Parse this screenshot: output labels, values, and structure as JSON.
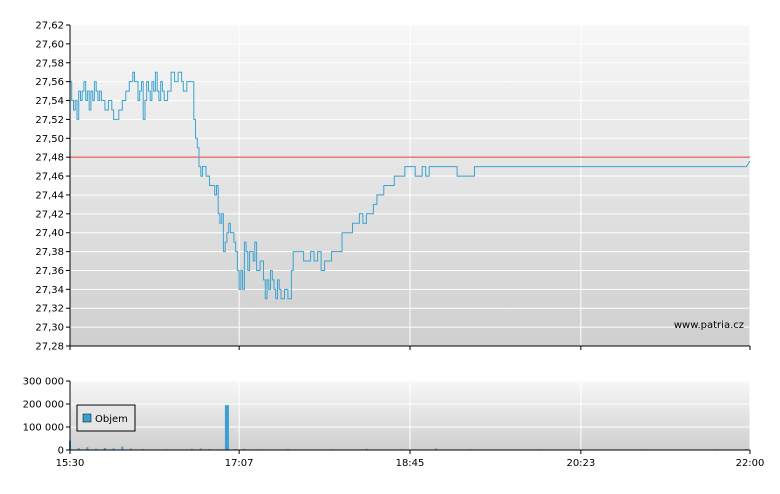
{
  "watermark": "www.patria.cz",
  "legend": {
    "label": "Objem"
  },
  "colors": {
    "price_line": "#3ba3d0",
    "reference_line": "#e53935",
    "volume_bar": "#3b9fd1",
    "grid": "#ffffff",
    "plot_bg_top": "#f7f7f7",
    "plot_bg_bottom": "#cfcfcf"
  },
  "chart_data": [
    {
      "type": "line",
      "name": "price",
      "x_ticks": [
        "15:30",
        "17:07",
        "18:45",
        "20:23",
        "22:00"
      ],
      "x_tick_minutes": [
        930,
        1027,
        1125,
        1223,
        1320
      ],
      "xlim_minutes": [
        930,
        1320
      ],
      "ylim": [
        27.28,
        27.62
      ],
      "y_ticks": [
        "27,28",
        "27,30",
        "27,32",
        "27,34",
        "27,36",
        "27,38",
        "27,40",
        "27,42",
        "27,44",
        "27,46",
        "27,48",
        "27,50",
        "27,52",
        "27,54",
        "27,56",
        "27,58",
        "27,60",
        "27,62"
      ],
      "reference_value": 27.48,
      "grid": true,
      "points": [
        [
          930,
          27.56
        ],
        [
          931,
          27.54
        ],
        [
          932,
          27.53
        ],
        [
          933,
          27.54
        ],
        [
          934,
          27.52
        ],
        [
          935,
          27.55
        ],
        [
          936,
          27.54
        ],
        [
          937,
          27.55
        ],
        [
          938,
          27.56
        ],
        [
          939,
          27.54
        ],
        [
          940,
          27.55
        ],
        [
          941,
          27.53
        ],
        [
          942,
          27.55
        ],
        [
          943,
          27.54
        ],
        [
          944,
          27.56
        ],
        [
          945,
          27.55
        ],
        [
          946,
          27.54
        ],
        [
          947,
          27.55
        ],
        [
          948,
          27.54
        ],
        [
          950,
          27.53
        ],
        [
          952,
          27.54
        ],
        [
          954,
          27.53
        ],
        [
          955,
          27.52
        ],
        [
          956,
          27.52
        ],
        [
          958,
          27.53
        ],
        [
          960,
          27.54
        ],
        [
          962,
          27.55
        ],
        [
          964,
          27.56
        ],
        [
          966,
          27.57
        ],
        [
          967,
          27.56
        ],
        [
          968,
          27.56
        ],
        [
          969,
          27.54
        ],
        [
          970,
          27.55
        ],
        [
          971,
          27.56
        ],
        [
          972,
          27.52
        ],
        [
          973,
          27.54
        ],
        [
          974,
          27.56
        ],
        [
          975,
          27.55
        ],
        [
          976,
          27.54
        ],
        [
          977,
          27.56
        ],
        [
          978,
          27.55
        ],
        [
          979,
          27.57
        ],
        [
          980,
          27.55
        ],
        [
          981,
          27.54
        ],
        [
          982,
          27.56
        ],
        [
          983,
          27.55
        ],
        [
          984,
          27.54
        ],
        [
          986,
          27.55
        ],
        [
          988,
          27.57
        ],
        [
          990,
          27.56
        ],
        [
          992,
          27.57
        ],
        [
          994,
          27.56
        ],
        [
          995,
          27.55
        ],
        [
          997,
          27.56
        ],
        [
          1000,
          27.56
        ],
        [
          1001,
          27.52
        ],
        [
          1002,
          27.5
        ],
        [
          1003,
          27.49
        ],
        [
          1004,
          27.47
        ],
        [
          1005,
          27.46
        ],
        [
          1006,
          27.47
        ],
        [
          1008,
          27.46
        ],
        [
          1010,
          27.45
        ],
        [
          1012,
          27.45
        ],
        [
          1013,
          27.44
        ],
        [
          1014,
          27.45
        ],
        [
          1015,
          27.42
        ],
        [
          1016,
          27.41
        ],
        [
          1017,
          27.42
        ],
        [
          1018,
          27.38
        ],
        [
          1019,
          27.39
        ],
        [
          1020,
          27.4
        ],
        [
          1021,
          27.41
        ],
        [
          1022,
          27.4
        ],
        [
          1023,
          27.4
        ],
        [
          1024,
          27.39
        ],
        [
          1025,
          27.38
        ],
        [
          1026,
          27.36
        ],
        [
          1027,
          27.34
        ],
        [
          1028,
          27.36
        ],
        [
          1029,
          27.34
        ],
        [
          1030,
          27.39
        ],
        [
          1031,
          27.38
        ],
        [
          1032,
          27.36
        ],
        [
          1033,
          27.38
        ],
        [
          1034,
          27.38
        ],
        [
          1035,
          27.37
        ],
        [
          1036,
          27.39
        ],
        [
          1037,
          27.36
        ],
        [
          1038,
          27.36
        ],
        [
          1039,
          27.37
        ],
        [
          1040,
          27.37
        ],
        [
          1041,
          27.35
        ],
        [
          1042,
          27.33
        ],
        [
          1043,
          27.35
        ],
        [
          1044,
          27.34
        ],
        [
          1045,
          27.36
        ],
        [
          1046,
          27.35
        ],
        [
          1047,
          27.34
        ],
        [
          1048,
          27.33
        ],
        [
          1049,
          27.35
        ],
        [
          1050,
          27.34
        ],
        [
          1051,
          27.33
        ],
        [
          1053,
          27.34
        ],
        [
          1055,
          27.33
        ],
        [
          1057,
          27.36
        ],
        [
          1058,
          27.38
        ],
        [
          1060,
          27.38
        ],
        [
          1062,
          27.38
        ],
        [
          1064,
          27.37
        ],
        [
          1066,
          27.37
        ],
        [
          1068,
          27.38
        ],
        [
          1070,
          27.37
        ],
        [
          1072,
          27.38
        ],
        [
          1074,
          27.36
        ],
        [
          1076,
          27.37
        ],
        [
          1078,
          27.37
        ],
        [
          1080,
          27.38
        ],
        [
          1082,
          27.38
        ],
        [
          1084,
          27.38
        ],
        [
          1086,
          27.4
        ],
        [
          1088,
          27.4
        ],
        [
          1090,
          27.4
        ],
        [
          1092,
          27.41
        ],
        [
          1094,
          27.41
        ],
        [
          1096,
          27.42
        ],
        [
          1098,
          27.41
        ],
        [
          1100,
          27.42
        ],
        [
          1102,
          27.42
        ],
        [
          1104,
          27.43
        ],
        [
          1106,
          27.44
        ],
        [
          1108,
          27.44
        ],
        [
          1110,
          27.45
        ],
        [
          1112,
          27.45
        ],
        [
          1114,
          27.45
        ],
        [
          1116,
          27.46
        ],
        [
          1118,
          27.46
        ],
        [
          1120,
          27.46
        ],
        [
          1122,
          27.47
        ],
        [
          1124,
          27.47
        ],
        [
          1126,
          27.47
        ],
        [
          1128,
          27.46
        ],
        [
          1130,
          27.46
        ],
        [
          1132,
          27.47
        ],
        [
          1134,
          27.46
        ],
        [
          1136,
          27.47
        ],
        [
          1138,
          27.47
        ],
        [
          1140,
          27.47
        ],
        [
          1142,
          27.47
        ],
        [
          1144,
          27.47
        ],
        [
          1146,
          27.47
        ],
        [
          1148,
          27.47
        ],
        [
          1150,
          27.47
        ],
        [
          1152,
          27.46
        ],
        [
          1154,
          27.46
        ],
        [
          1156,
          27.46
        ],
        [
          1158,
          27.46
        ],
        [
          1160,
          27.46
        ],
        [
          1162,
          27.47
        ],
        [
          1164,
          27.47
        ]
      ]
    },
    {
      "type": "bar",
      "name": "volume",
      "legend": "Objem",
      "ylim": [
        0,
        300000
      ],
      "y_ticks": [
        "0",
        "100 000",
        "200 000",
        "300 000"
      ],
      "xlim_minutes": [
        930,
        1320
      ],
      "bars": [
        [
          930,
          40000
        ],
        [
          935,
          8000
        ],
        [
          940,
          12000
        ],
        [
          945,
          5000
        ],
        [
          950,
          9000
        ],
        [
          955,
          7000
        ],
        [
          960,
          15000
        ],
        [
          965,
          6000
        ],
        [
          972,
          4000
        ],
        [
          985,
          3000
        ],
        [
          1000,
          5000
        ],
        [
          1005,
          6000
        ],
        [
          1010,
          4000
        ],
        [
          1015,
          3000
        ],
        [
          1020,
          195000
        ],
        [
          1025,
          4000
        ],
        [
          1030,
          5000
        ],
        [
          1040,
          3000
        ],
        [
          1055,
          4000
        ],
        [
          1080,
          3000
        ],
        [
          1100,
          5000
        ],
        [
          1120,
          3000
        ],
        [
          1140,
          6000
        ],
        [
          1160,
          3000
        ],
        [
          1180,
          2000
        ],
        [
          1200,
          3000
        ],
        [
          1220,
          2000
        ],
        [
          1240,
          2000
        ],
        [
          1260,
          3000
        ],
        [
          1280,
          2000
        ],
        [
          1300,
          3000
        ],
        [
          1318,
          4000
        ]
      ]
    }
  ]
}
